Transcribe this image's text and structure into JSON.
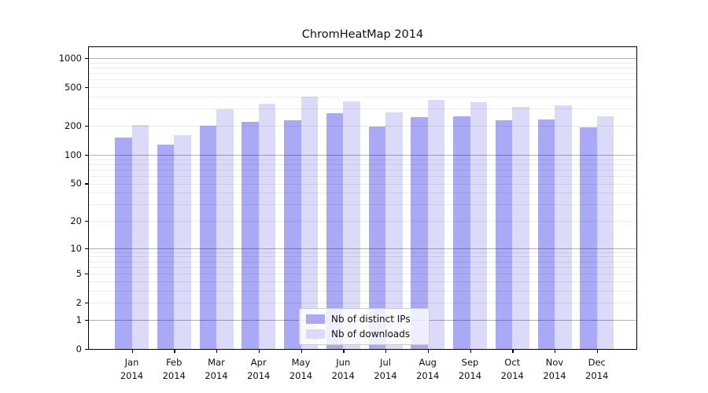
{
  "title": "ChromHeatMap 2014",
  "chart_data": {
    "type": "bar",
    "title": "ChromHeatMap 2014",
    "xlabel": "",
    "ylabel": "",
    "categories": [
      "Jan 2014",
      "Feb 2014",
      "Mar 2014",
      "Apr 2014",
      "May 2014",
      "Jun 2014",
      "Jul 2014",
      "Aug 2014",
      "Sep 2014",
      "Oct 2014",
      "Nov 2014",
      "Dec 2014"
    ],
    "x_tick_month": [
      "Jan",
      "Feb",
      "Mar",
      "Apr",
      "May",
      "Jun",
      "Jul",
      "Aug",
      "Sep",
      "Oct",
      "Nov",
      "Dec"
    ],
    "x_tick_year": "2014",
    "series": [
      {
        "name": "Nb of distinct IPs",
        "color": "#a9a9f6",
        "values": [
          150,
          128,
          200,
          220,
          230,
          270,
          197,
          245,
          253,
          228,
          233,
          193
        ]
      },
      {
        "name": "Nb of downloads",
        "color": "#dbdbf9",
        "values": [
          205,
          160,
          295,
          340,
          403,
          355,
          277,
          370,
          350,
          313,
          325,
          251
        ]
      }
    ],
    "y_scale": "log1p",
    "ylim": [
      0,
      1100
    ],
    "y_tick_values": [
      0,
      1,
      2,
      5,
      10,
      20,
      50,
      100,
      200,
      500,
      1000
    ],
    "y_tick_labels": [
      "0",
      "1",
      "2",
      "5",
      "10",
      "20",
      "50",
      "100",
      "200",
      "500",
      "1000"
    ],
    "y_grid_major_values": [
      1,
      10,
      100,
      1000
    ],
    "y_grid_minor_values": [
      2,
      3,
      4,
      5,
      6,
      7,
      8,
      9,
      20,
      30,
      40,
      50,
      60,
      70,
      80,
      90,
      200,
      300,
      400,
      500,
      600,
      700,
      800,
      900
    ],
    "grid": true,
    "legend_position": "lower center",
    "legend": [
      "Nb of distinct IPs",
      "Nb of downloads"
    ]
  },
  "colors": {
    "background": "#ffffff",
    "spine": "#000000",
    "bar_dark": "#a9a9f6",
    "bar_light": "#dbdbf9",
    "grid_major": "rgba(0,0,0,0.30)",
    "grid_minor": "rgba(0,0,0,0.08)",
    "legend_border": "#cccccc"
  }
}
